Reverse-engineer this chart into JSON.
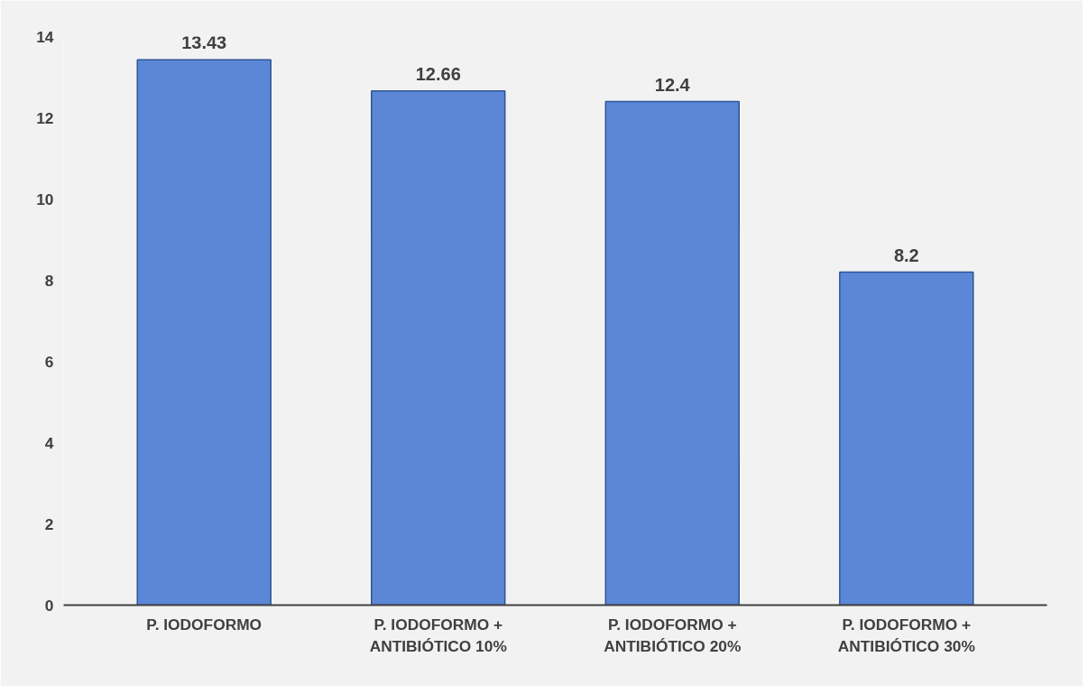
{
  "chart_data": {
    "type": "bar",
    "categories": [
      "P. IODOFORMO",
      "P. IODOFORMO +\nANTIBIÓTICO 10%",
      "P. IODOFORMO +\nANTIBIÓTICO 20%",
      "P. IODOFORMO +\nANTIBIÓTICO 30%"
    ],
    "values": [
      13.43,
      12.66,
      12.4,
      8.2
    ],
    "color": "#5b87d6",
    "data_labels": true,
    "ylim": [
      0,
      14
    ],
    "yticks": [
      0,
      2,
      4,
      6,
      8,
      10,
      12,
      14
    ],
    "grid": false
  }
}
